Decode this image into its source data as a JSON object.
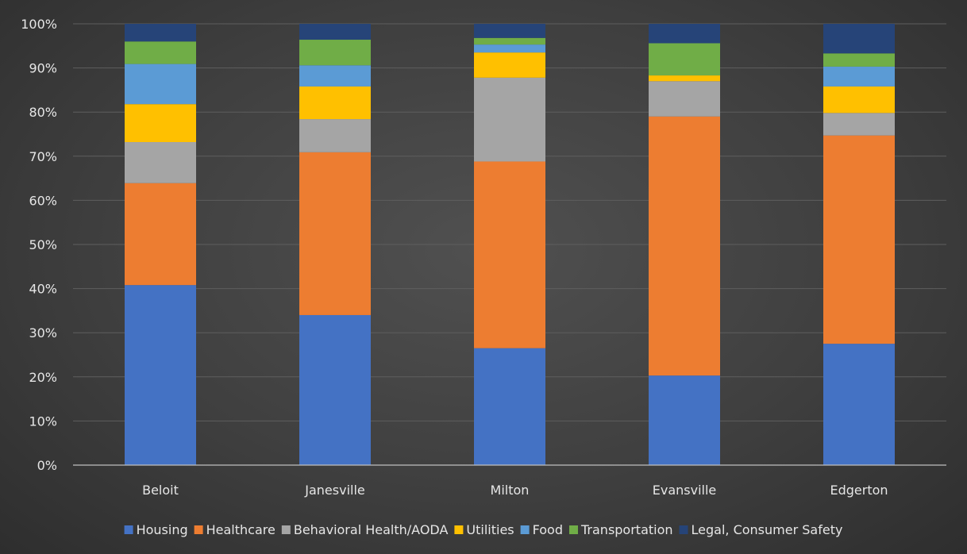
{
  "chart_data": {
    "type": "bar",
    "stacked": "percent",
    "title": "",
    "xlabel": "",
    "ylabel": "",
    "ylim": [
      0,
      100
    ],
    "yticks": [
      "0%",
      "10%",
      "20%",
      "30%",
      "40%",
      "50%",
      "60%",
      "70%",
      "80%",
      "90%",
      "100%"
    ],
    "grid": true,
    "legend_position": "bottom",
    "categories": [
      "Beloit",
      "Janesville",
      "Milton",
      "Evansville",
      "Edgerton"
    ],
    "series": [
      {
        "name": "Housing",
        "color": "#4472c4",
        "values": [
          40.8,
          34.0,
          26.5,
          20.3,
          27.5
        ]
      },
      {
        "name": "Healthcare",
        "color": "#ed7d31",
        "values": [
          23.1,
          36.9,
          42.3,
          58.7,
          47.2
        ]
      },
      {
        "name": "Behavioral Health/AODA",
        "color": "#a5a5a5",
        "values": [
          9.3,
          7.5,
          19.0,
          8.0,
          5.1
        ]
      },
      {
        "name": "Utilities",
        "color": "#ffc000",
        "values": [
          8.6,
          7.4,
          5.7,
          1.3,
          6.0
        ]
      },
      {
        "name": "Food",
        "color": "#5b9bd5",
        "values": [
          9.1,
          4.8,
          1.8,
          0.0,
          4.5
        ]
      },
      {
        "name": "Transportation",
        "color": "#70ad47",
        "values": [
          5.1,
          5.8,
          1.5,
          7.3,
          3.0
        ]
      },
      {
        "name": "Legal, Consumer Safety",
        "color": "#264478",
        "values": [
          4.0,
          3.6,
          3.2,
          4.4,
          6.7
        ]
      }
    ]
  }
}
